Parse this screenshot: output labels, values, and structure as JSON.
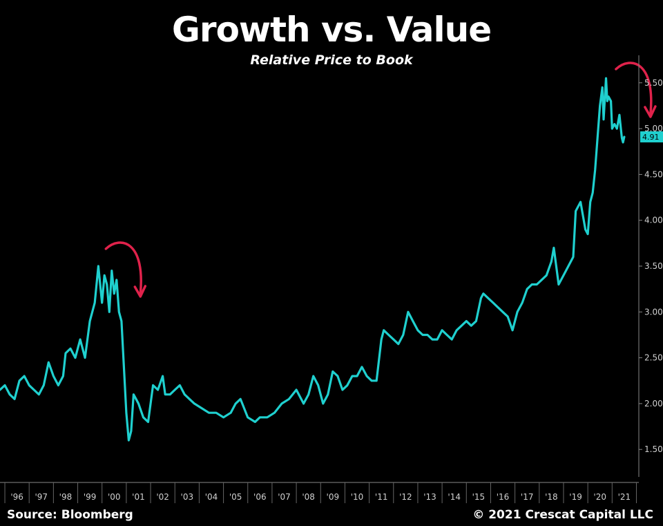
{
  "chart_data": {
    "type": "line",
    "title": "Growth vs. Value",
    "subtitle": "Relative Price to Book",
    "source": "Source: Bloomberg",
    "copyright": "© 2021 Crescat Capital LLC",
    "xlim": [
      1995.3,
      2021.6
    ],
    "ylim": [
      1.2,
      5.8
    ],
    "yticks": [
      1.5,
      2.0,
      2.5,
      3.0,
      3.5,
      4.0,
      4.5,
      5.0,
      5.5
    ],
    "ytick_labels": [
      "1.50",
      "2.00",
      "2.50",
      "3.00",
      "3.50",
      "4.00",
      "4.50",
      "5.00",
      "5.50"
    ],
    "xtick_labels": [
      "'96",
      "'97",
      "'98",
      "'99",
      "'00",
      "'01",
      "'02",
      "'03",
      "'04",
      "'05",
      "'06",
      "'07",
      "'08",
      "'09",
      "'10",
      "'11",
      "'12",
      "'13",
      "'14",
      "'15",
      "'16",
      "'17",
      "'18",
      "'19",
      "'20",
      "'21"
    ],
    "grid": false,
    "series": [
      {
        "color": "#1fd0cf",
        "last_value_label": "4.91",
        "x": [
          1995.3,
          1995.5,
          1995.7,
          1995.9,
          1996.1,
          1996.3,
          1996.5,
          1996.7,
          1996.9,
          1997.1,
          1997.3,
          1997.5,
          1997.7,
          1997.9,
          1998.0,
          1998.2,
          1998.4,
          1998.6,
          1998.8,
          1999.0,
          1999.2,
          1999.35,
          1999.5,
          1999.6,
          1999.7,
          1999.8,
          1999.9,
          2000.0,
          2000.1,
          2000.2,
          2000.3,
          2000.4,
          2000.5,
          2000.6,
          2000.7,
          2000.8,
          2000.9,
          2001.0,
          2001.2,
          2001.4,
          2001.6,
          2001.8,
          2002.0,
          2002.1,
          2002.3,
          2002.5,
          2002.7,
          2002.9,
          2003.1,
          2003.3,
          2003.6,
          2003.9,
          2004.2,
          2004.5,
          2004.8,
          2005.0,
          2005.2,
          2005.5,
          2005.8,
          2006.0,
          2006.3,
          2006.6,
          2006.9,
          2007.2,
          2007.5,
          2007.8,
          2008.0,
          2008.2,
          2008.4,
          2008.6,
          2008.8,
          2009.0,
          2009.2,
          2009.4,
          2009.6,
          2009.8,
          2010.0,
          2010.2,
          2010.4,
          2010.6,
          2010.8,
          2011.0,
          2011.1,
          2011.3,
          2011.5,
          2011.7,
          2011.9,
          2012.1,
          2012.3,
          2012.5,
          2012.7,
          2012.9,
          2013.1,
          2013.3,
          2013.5,
          2013.7,
          2013.9,
          2014.1,
          2014.3,
          2014.5,
          2014.7,
          2014.9,
          2015.1,
          2015.2,
          2015.4,
          2015.6,
          2015.8,
          2016.0,
          2016.2,
          2016.4,
          2016.6,
          2016.8,
          2017.0,
          2017.2,
          2017.4,
          2017.6,
          2017.8,
          2018.0,
          2018.1,
          2018.2,
          2018.3,
          2018.5,
          2018.7,
          2018.9,
          2019.0,
          2019.2,
          2019.4,
          2019.5,
          2019.6,
          2019.7,
          2019.8,
          2019.9,
          2020.0,
          2020.1,
          2020.15,
          2020.25,
          2020.3,
          2020.35,
          2020.45,
          2020.5,
          2020.6,
          2020.7,
          2020.8,
          2020.9,
          2020.95,
          2021.0
        ],
        "y": [
          2.15,
          2.2,
          2.1,
          2.05,
          2.25,
          2.3,
          2.2,
          2.15,
          2.1,
          2.2,
          2.45,
          2.3,
          2.2,
          2.3,
          2.55,
          2.6,
          2.5,
          2.7,
          2.5,
          2.9,
          3.1,
          3.5,
          3.1,
          3.4,
          3.3,
          3.0,
          3.45,
          3.2,
          3.35,
          3.0,
          2.9,
          2.4,
          1.9,
          1.6,
          1.7,
          2.1,
          2.05,
          2.0,
          1.85,
          1.8,
          2.2,
          2.15,
          2.3,
          2.1,
          2.1,
          2.15,
          2.2,
          2.1,
          2.05,
          2.0,
          1.95,
          1.9,
          1.9,
          1.85,
          1.9,
          2.0,
          2.05,
          1.85,
          1.8,
          1.85,
          1.85,
          1.9,
          2.0,
          2.05,
          2.15,
          2.0,
          2.1,
          2.3,
          2.2,
          2.0,
          2.1,
          2.35,
          2.3,
          2.15,
          2.2,
          2.3,
          2.3,
          2.4,
          2.3,
          2.25,
          2.25,
          2.7,
          2.8,
          2.75,
          2.7,
          2.65,
          2.75,
          3.0,
          2.9,
          2.8,
          2.75,
          2.75,
          2.7,
          2.7,
          2.8,
          2.75,
          2.7,
          2.8,
          2.85,
          2.9,
          2.85,
          2.9,
          3.15,
          3.2,
          3.15,
          3.1,
          3.05,
          3.0,
          2.95,
          2.8,
          3.0,
          3.1,
          3.25,
          3.3,
          3.3,
          3.35,
          3.4,
          3.55,
          3.7,
          3.5,
          3.3,
          3.4,
          3.5,
          3.6,
          4.1,
          4.2,
          3.9,
          3.85,
          4.2,
          4.3,
          4.55,
          4.9,
          5.25,
          5.45,
          5.1,
          5.55,
          5.3,
          5.35,
          5.3,
          5.0,
          5.05,
          5.0,
          5.15,
          4.9,
          4.85,
          4.91
        ]
      }
    ],
    "annotations": [
      {
        "type": "arrow",
        "color": "#e0224b",
        "near_x": 2000.0,
        "direction": "down"
      },
      {
        "type": "arrow",
        "color": "#e0224b",
        "near_x": 2021.0,
        "direction": "down"
      }
    ]
  }
}
